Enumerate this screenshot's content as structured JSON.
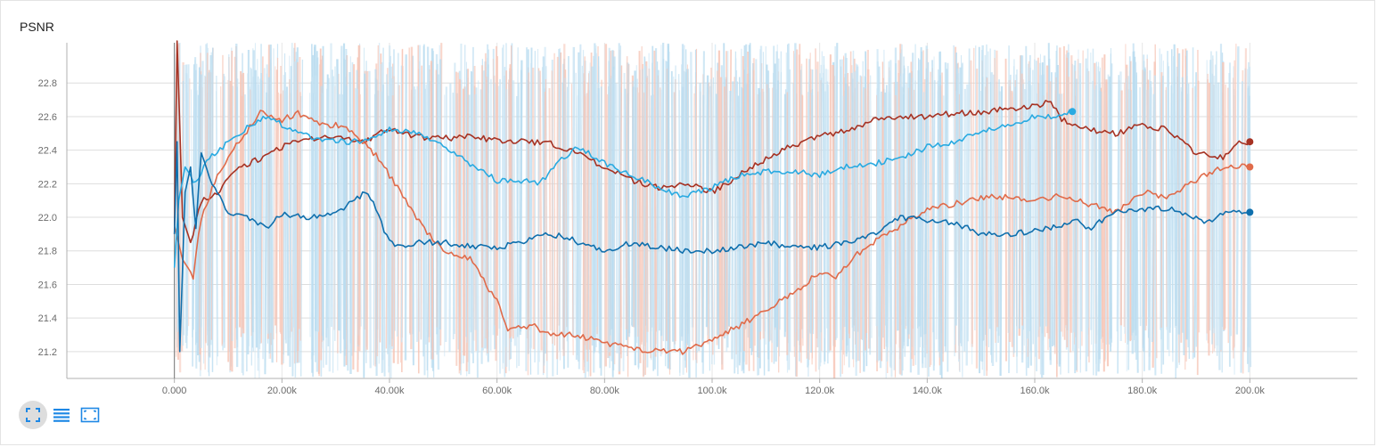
{
  "title": "PSNR",
  "toolbar": {
    "icons": [
      "fullscreen-icon",
      "list-icon",
      "fit-domain-icon"
    ]
  },
  "chart_data": {
    "type": "line",
    "title": "PSNR",
    "xlabel": "",
    "ylabel": "",
    "xlim": [
      -20000,
      220000
    ],
    "ylim": [
      21.04,
      23.04
    ],
    "x_ticks": [
      0,
      20000,
      40000,
      60000,
      80000,
      100000,
      120000,
      140000,
      160000,
      180000,
      200000
    ],
    "x_tick_labels": [
      "0.000",
      "20.00k",
      "40.00k",
      "60.00k",
      "80.00k",
      "100.0k",
      "120.0k",
      "140.0k",
      "160.0k",
      "180.0k",
      "200.0k"
    ],
    "y_ticks": [
      21.2,
      21.4,
      21.6,
      21.8,
      22.0,
      22.2,
      22.4,
      22.6,
      22.8
    ],
    "y_tick_labels": [
      "21.2",
      "21.4",
      "21.6",
      "21.8",
      "22.0",
      "22.2",
      "22.4",
      "22.6",
      "22.8"
    ],
    "grid": true,
    "legend": "none",
    "series": [
      {
        "color": "#a63223",
        "x": [
          0,
          500,
          1500,
          3000,
          5000,
          8000,
          12000,
          16000,
          20000,
          25000,
          30000,
          35000,
          40000,
          45000,
          50000,
          55000,
          60000,
          65000,
          70000,
          75000,
          80000,
          85000,
          90000,
          95000,
          100000,
          105000,
          110000,
          115000,
          120000,
          125000,
          130000,
          135000,
          140000,
          145000,
          150000,
          155000,
          160000,
          163000,
          165000,
          170000,
          175000,
          180000,
          185000,
          190000,
          195000,
          198000,
          200000
        ],
        "y": [
          21.9,
          23.1,
          22.0,
          21.85,
          22.1,
          22.15,
          22.3,
          22.35,
          22.42,
          22.47,
          22.48,
          22.45,
          22.53,
          22.48,
          22.47,
          22.48,
          22.46,
          22.45,
          22.44,
          22.38,
          22.3,
          22.22,
          22.18,
          22.2,
          22.15,
          22.25,
          22.35,
          22.43,
          22.48,
          22.52,
          22.58,
          22.6,
          22.6,
          22.62,
          22.62,
          22.65,
          22.66,
          22.7,
          22.58,
          22.52,
          22.5,
          22.55,
          22.52,
          22.38,
          22.36,
          22.45,
          22.45
        ]
      },
      {
        "color": "#e06b4a",
        "x": [
          0,
          1500,
          3500,
          5000,
          8000,
          12000,
          16000,
          20000,
          23000,
          27000,
          31000,
          35000,
          38000,
          42000,
          46000,
          50000,
          55000,
          60000,
          62000,
          67000,
          70000,
          75000,
          80000,
          85000,
          90000,
          95000,
          100000,
          105000,
          110000,
          115000,
          120000,
          123000,
          127000,
          130000,
          135000,
          140000,
          145000,
          150000,
          155000,
          160000,
          165000,
          170000,
          175000,
          180000,
          185000,
          190000,
          195000,
          200000
        ],
        "y": [
          21.95,
          21.75,
          21.65,
          22.0,
          22.25,
          22.45,
          22.63,
          22.58,
          22.62,
          22.55,
          22.55,
          22.45,
          22.35,
          22.15,
          21.95,
          21.8,
          21.75,
          21.5,
          21.33,
          21.35,
          21.3,
          21.3,
          21.25,
          21.22,
          21.2,
          21.2,
          21.28,
          21.35,
          21.45,
          21.55,
          21.67,
          21.65,
          21.78,
          21.85,
          21.95,
          22.05,
          22.08,
          22.12,
          22.12,
          22.1,
          22.13,
          22.08,
          22.03,
          22.15,
          22.12,
          22.22,
          22.3,
          22.3
        ]
      },
      {
        "color": "#29aae1",
        "x": [
          0,
          800,
          2000,
          4000,
          6000,
          9000,
          12000,
          17000,
          20000,
          25000,
          30000,
          35000,
          40000,
          45000,
          50000,
          55000,
          60000,
          65000,
          68000,
          72000,
          75000,
          80000,
          85000,
          90000,
          95000,
          100000,
          105000,
          110000,
          115000,
          120000,
          125000,
          130000,
          135000,
          140000,
          145000,
          150000,
          155000,
          160000,
          163000,
          167000
        ],
        "y": [
          21.7,
          22.1,
          22.3,
          22.2,
          22.35,
          22.42,
          22.5,
          22.6,
          22.55,
          22.48,
          22.45,
          22.45,
          22.52,
          22.5,
          22.42,
          22.32,
          22.22,
          22.22,
          22.2,
          22.35,
          22.42,
          22.32,
          22.25,
          22.18,
          22.12,
          22.18,
          22.25,
          22.27,
          22.28,
          22.25,
          22.3,
          22.32,
          22.35,
          22.42,
          22.45,
          22.52,
          22.55,
          22.6,
          22.6,
          22.63
        ]
      },
      {
        "color": "#0f6fad",
        "x": [
          0,
          500,
          1000,
          2000,
          3000,
          4000,
          5000,
          7000,
          10000,
          15000,
          17000,
          20000,
          25000,
          30000,
          33000,
          36000,
          38000,
          40000,
          42000,
          45000,
          50000,
          55000,
          60000,
          65000,
          67000,
          70000,
          73000,
          75000,
          80000,
          85000,
          90000,
          95000,
          100000,
          105000,
          110000,
          115000,
          120000,
          125000,
          130000,
          135000,
          140000,
          145000,
          150000,
          155000,
          160000,
          165000,
          168000,
          170000,
          175000,
          180000,
          185000,
          190000,
          192000,
          195000,
          200000
        ],
        "y": [
          21.9,
          22.45,
          21.2,
          22.15,
          22.3,
          21.95,
          22.4,
          22.2,
          22.02,
          21.98,
          21.93,
          22.02,
          22.0,
          22.02,
          22.1,
          22.15,
          22.0,
          21.85,
          21.83,
          21.85,
          21.85,
          21.83,
          21.82,
          21.85,
          21.88,
          21.9,
          21.88,
          21.85,
          21.8,
          21.85,
          21.82,
          21.8,
          21.8,
          21.82,
          21.85,
          21.82,
          21.82,
          21.85,
          21.9,
          22.0,
          21.98,
          21.97,
          21.9,
          21.9,
          21.92,
          21.95,
          22.0,
          21.93,
          22.03,
          22.05,
          22.05,
          22.0,
          21.97,
          22.02,
          22.03
        ]
      }
    ]
  }
}
